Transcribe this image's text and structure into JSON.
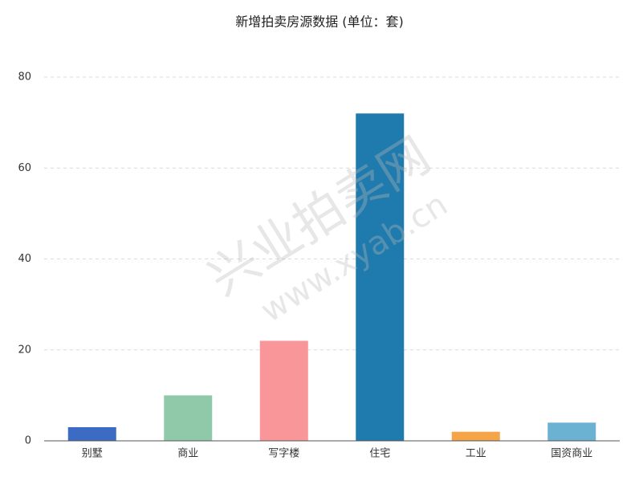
{
  "chart_data": {
    "type": "bar",
    "title": "新增拍卖房源数据 (单位：套)",
    "categories": [
      "别墅",
      "商业",
      "写字楼",
      "住宅",
      "工业",
      "国资商业"
    ],
    "values": [
      3,
      10,
      22,
      72,
      2,
      4
    ],
    "colors": [
      "#3b6bc3",
      "#8fc9aa",
      "#f8969a",
      "#1f7aad",
      "#f5a447",
      "#6bb1d2"
    ],
    "ylim": [
      0,
      80
    ],
    "yticks": [
      0,
      20,
      40,
      60,
      80
    ],
    "grid": true,
    "watermark": {
      "title": "兴业拍卖网",
      "url": "www.xyab.cn"
    }
  }
}
